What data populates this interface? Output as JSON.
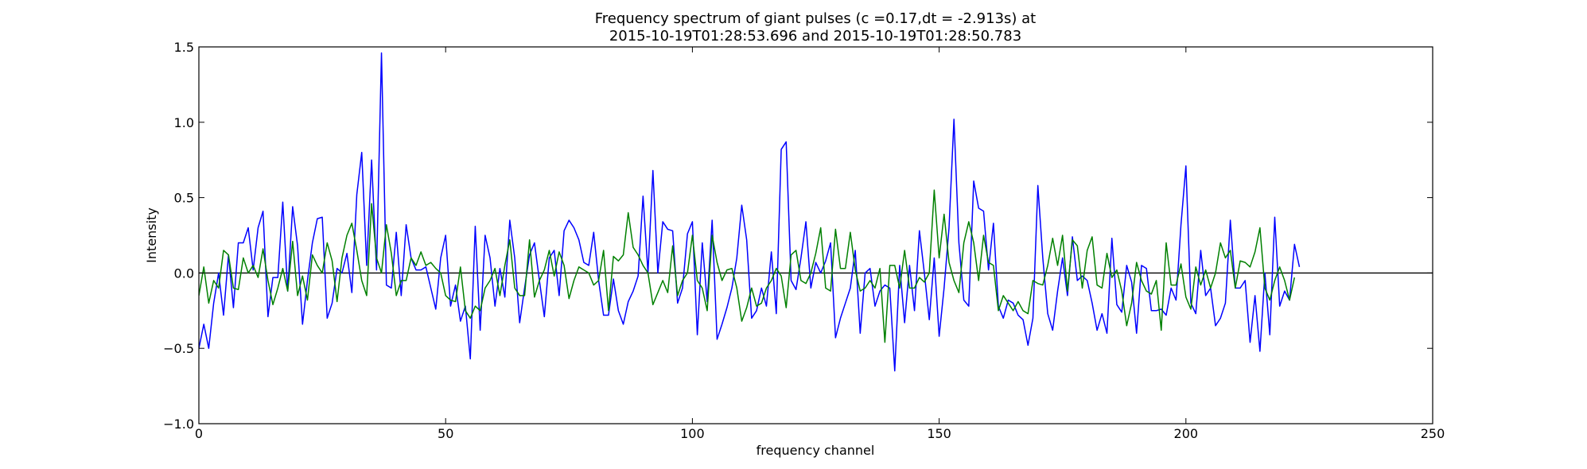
{
  "chart_data": {
    "type": "line",
    "title": [
      "Frequency spectrum of giant pulses (c =0.17,dt = -2.913s) at",
      "2015-10-19T01:28:53.696 and 2015-10-19T01:28:50.783"
    ],
    "xlabel": "frequency channel",
    "ylabel": "Intensity",
    "xlim": [
      0,
      250
    ],
    "ylim": [
      -1.0,
      1.5
    ],
    "x_ticks": [
      0,
      50,
      100,
      150,
      200,
      250
    ],
    "x_tick_labels": [
      "0",
      "50",
      "100",
      "150",
      "200",
      "250"
    ],
    "y_ticks": [
      -1.0,
      -0.5,
      0.0,
      0.5,
      1.0,
      1.5
    ],
    "y_tick_labels": [
      "−1.0",
      "−0.5",
      "0.0",
      "0.5",
      "1.0",
      "1.5"
    ],
    "grid": false,
    "hline": 0.0,
    "series": [
      {
        "color": "#0000ff",
        "x_start": 0,
        "x_step": 1,
        "values": [
          -0.5,
          -0.34,
          -0.5,
          -0.2,
          0.0,
          -0.28,
          0.12,
          -0.23,
          0.2,
          0.2,
          0.3,
          0.02,
          0.3,
          0.41,
          -0.29,
          -0.03,
          -0.03,
          0.47,
          -0.12,
          0.44,
          0.18,
          -0.34,
          -0.05,
          0.2,
          0.36,
          0.37,
          -0.3,
          -0.2,
          0.03,
          0.0,
          0.13,
          -0.13,
          0.52,
          0.8,
          0.05,
          0.75,
          0.02,
          1.46,
          -0.08,
          -0.1,
          0.27,
          -0.15,
          0.32,
          0.1,
          0.02,
          0.02,
          0.04,
          -0.1,
          -0.24,
          0.1,
          0.25,
          -0.22,
          -0.08,
          -0.32,
          -0.22,
          -0.57,
          0.31,
          -0.38,
          0.25,
          0.1,
          -0.22,
          0.03,
          -0.16,
          0.35,
          0.1,
          -0.33,
          -0.1,
          0.12,
          0.2,
          -0.05,
          -0.29,
          0.1,
          0.15,
          -0.15,
          0.28,
          0.35,
          0.3,
          0.22,
          0.07,
          0.05,
          0.27,
          -0.05,
          -0.28,
          -0.28,
          -0.04,
          -0.25,
          -0.34,
          -0.19,
          -0.12,
          -0.02,
          0.51,
          0.0,
          0.68,
          0.0,
          0.34,
          0.29,
          0.28,
          -0.2,
          -0.1,
          0.26,
          0.34,
          -0.41,
          0.2,
          -0.19,
          0.35,
          -0.44,
          -0.34,
          -0.23,
          -0.1,
          0.1,
          0.45,
          0.22,
          -0.3,
          -0.25,
          -0.1,
          -0.22,
          0.14,
          -0.27,
          0.82,
          0.87,
          -0.05,
          -0.11,
          0.1,
          0.34,
          -0.1,
          0.07,
          0.0,
          0.08,
          0.2,
          -0.43,
          -0.3,
          -0.2,
          -0.1,
          0.15,
          -0.4,
          0.0,
          0.03,
          -0.22,
          -0.12,
          -0.08,
          -0.1,
          -0.65,
          0.05,
          -0.33,
          0.05,
          -0.25,
          0.28,
          0.0,
          -0.31,
          0.1,
          -0.42,
          -0.1,
          0.3,
          1.02,
          0.2,
          -0.18,
          -0.22,
          0.61,
          0.43,
          0.41,
          0.02,
          0.33,
          -0.22,
          -0.3,
          -0.18,
          -0.2,
          -0.28,
          -0.31,
          -0.48,
          -0.3,
          0.58,
          0.1,
          -0.27,
          -0.38,
          -0.12,
          0.1,
          -0.15,
          0.24,
          -0.05,
          -0.02,
          -0.05,
          -0.2,
          -0.38,
          -0.27,
          -0.4,
          0.23,
          -0.21,
          -0.26,
          0.05,
          -0.06,
          -0.4,
          0.05,
          0.03,
          -0.25,
          -0.25,
          -0.24,
          -0.28,
          -0.1,
          -0.18,
          0.32,
          0.71,
          -0.2,
          -0.27,
          0.15,
          -0.15,
          -0.1,
          -0.35,
          -0.3,
          -0.2,
          0.35,
          -0.1,
          -0.1,
          -0.05,
          -0.46,
          -0.15,
          -0.52,
          0.0,
          -0.41,
          0.37,
          -0.22,
          -0.12,
          -0.18,
          0.19,
          0.04
        ]
      },
      {
        "color": "#008000",
        "x_start": 0,
        "x_step": 1,
        "values": [
          -0.15,
          0.04,
          -0.2,
          -0.05,
          -0.1,
          0.15,
          0.12,
          -0.1,
          -0.11,
          0.1,
          0.0,
          0.05,
          -0.03,
          0.16,
          -0.05,
          -0.21,
          -0.1,
          0.03,
          -0.12,
          0.21,
          -0.15,
          -0.02,
          -0.18,
          0.12,
          0.05,
          0.0,
          0.2,
          0.08,
          -0.19,
          0.1,
          0.25,
          0.33,
          0.15,
          -0.05,
          -0.15,
          0.46,
          0.1,
          0.0,
          0.32,
          0.13,
          -0.15,
          -0.05,
          -0.05,
          0.1,
          0.05,
          0.14,
          0.05,
          0.07,
          0.03,
          0.0,
          -0.15,
          -0.18,
          -0.19,
          0.04,
          -0.25,
          -0.3,
          -0.22,
          -0.25,
          -0.1,
          -0.05,
          0.03,
          -0.15,
          0.05,
          0.22,
          -0.1,
          -0.15,
          -0.15,
          0.22,
          -0.16,
          -0.05,
          0.02,
          0.15,
          -0.02,
          0.14,
          0.05,
          -0.17,
          -0.05,
          0.04,
          0.02,
          0.0,
          -0.08,
          -0.05,
          0.15,
          -0.25,
          0.11,
          0.08,
          0.12,
          0.4,
          0.17,
          0.12,
          0.05,
          0.0,
          -0.21,
          -0.13,
          -0.05,
          -0.13,
          0.18,
          -0.15,
          -0.05,
          0.0,
          0.25,
          -0.05,
          -0.1,
          -0.25,
          0.25,
          0.07,
          -0.05,
          0.02,
          0.03,
          -0.1,
          -0.32,
          -0.23,
          -0.1,
          -0.22,
          -0.2,
          -0.1,
          -0.05,
          0.03,
          -0.02,
          -0.23,
          0.12,
          0.15,
          -0.05,
          -0.07,
          0.0,
          0.13,
          0.3,
          -0.1,
          -0.12,
          0.29,
          0.03,
          0.03,
          0.27,
          0.02,
          -0.12,
          -0.1,
          -0.05,
          -0.1,
          0.03,
          -0.46,
          0.05,
          0.05,
          -0.1,
          0.15,
          -0.1,
          -0.1,
          -0.03,
          -0.06,
          0.0,
          0.55,
          0.1,
          0.39,
          0.07,
          -0.05,
          -0.13,
          0.2,
          0.34,
          0.2,
          -0.05,
          0.25,
          0.07,
          0.05,
          -0.25,
          -0.15,
          -0.2,
          -0.25,
          -0.19,
          -0.25,
          -0.27,
          -0.05,
          -0.07,
          -0.08,
          0.05,
          0.23,
          0.05,
          0.25,
          -0.12,
          0.22,
          0.18,
          -0.1,
          0.15,
          0.24,
          -0.08,
          -0.1,
          0.13,
          -0.03,
          0.02,
          -0.12,
          -0.35,
          -0.2,
          0.07,
          -0.05,
          -0.12,
          -0.14,
          -0.05,
          -0.38,
          0.2,
          -0.08,
          -0.08,
          0.06,
          -0.16,
          -0.24,
          0.04,
          -0.08,
          0.02,
          -0.1,
          0.0,
          0.2,
          0.1,
          0.15,
          -0.1,
          0.08,
          0.07,
          0.04,
          0.14,
          0.3,
          -0.1,
          -0.18,
          -0.05,
          0.04,
          -0.05,
          -0.18,
          -0.03
        ]
      }
    ]
  }
}
